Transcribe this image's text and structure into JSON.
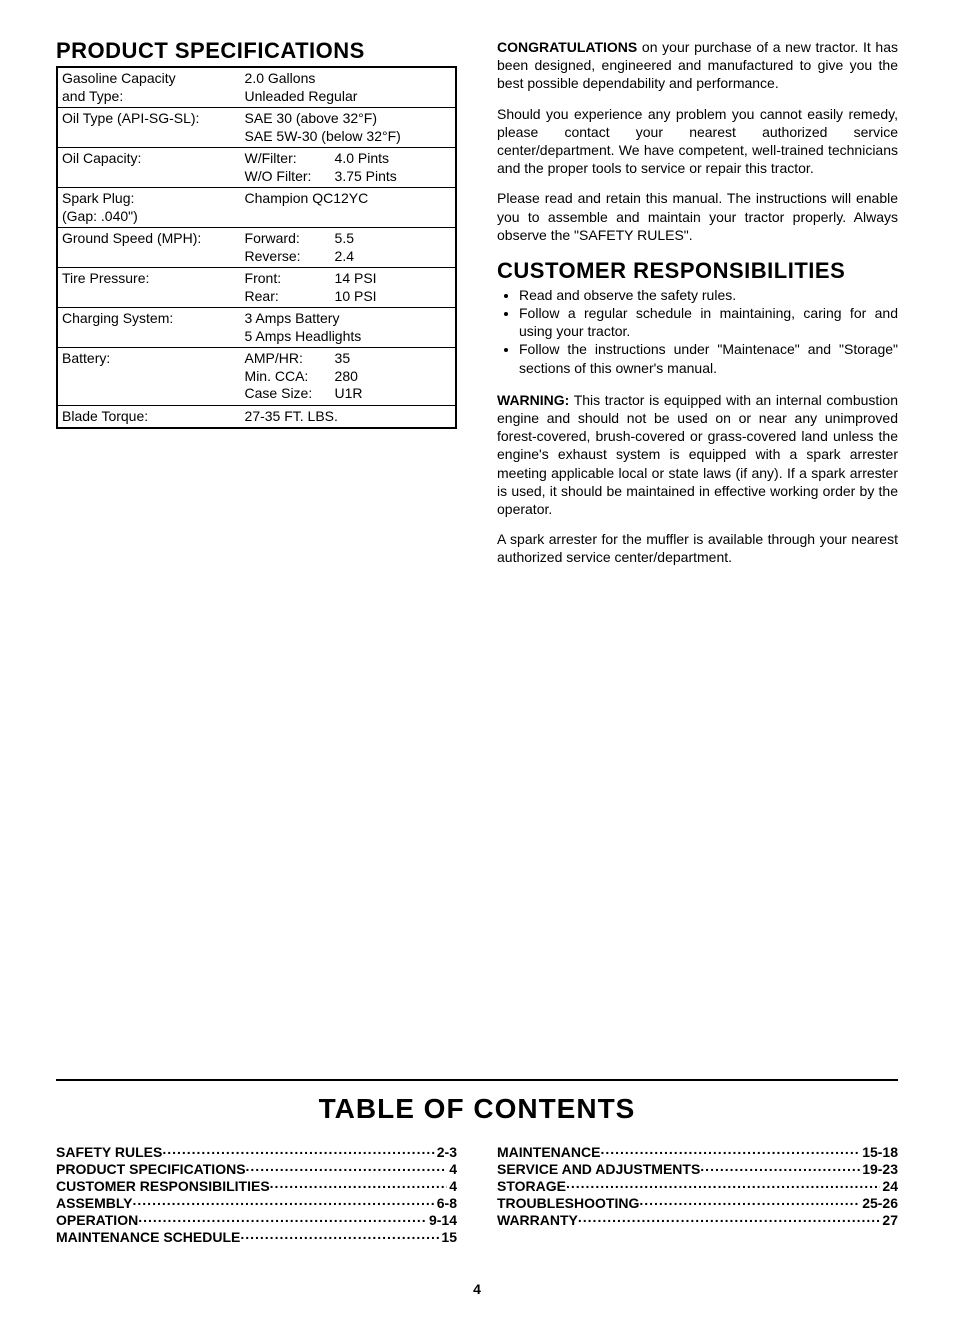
{
  "left": {
    "title": "PRODUCT SPECIFICATIONS",
    "rows": [
      {
        "label": "Gasoline Capacity\nand Type:",
        "lines": [
          "2.0 Gallons",
          "Unleaded Regular"
        ]
      },
      {
        "label": "Oil Type (API-SG-SL):",
        "lines": [
          "SAE 30 (above 32°F)",
          "SAE 5W-30 (below 32°F)"
        ]
      },
      {
        "label": "Oil Capacity:",
        "kv": [
          [
            "W/Filter:",
            "4.0 Pints"
          ],
          [
            "W/O Filter:",
            "3.75 Pints"
          ]
        ]
      },
      {
        "label": "Spark Plug:\n(Gap: .040\")",
        "lines": [
          "Champion QC12YC"
        ]
      },
      {
        "label": "Ground Speed (MPH):",
        "kv": [
          [
            "Forward:",
            "5.5"
          ],
          [
            "Reverse:",
            "2.4"
          ]
        ]
      },
      {
        "label": "Tire Pressure:",
        "kv": [
          [
            "Front:",
            "14 PSI"
          ],
          [
            "Rear:",
            "10 PSI"
          ]
        ]
      },
      {
        "label": "Charging System:",
        "lines": [
          "3 Amps Battery",
          "5 Amps Headlights"
        ]
      },
      {
        "label": "Battery:",
        "kv": [
          [
            "AMP/HR:",
            "35"
          ],
          [
            "Min. CCA:",
            "280"
          ],
          [
            "Case Size:",
            "U1R"
          ]
        ]
      },
      {
        "label": "Blade Torque:",
        "lines": [
          "27-35 FT. LBS."
        ]
      }
    ]
  },
  "right": {
    "p1_bold": "CONGRATULATIONS",
    "p1_rest": " on your purchase of a new tractor. It has been designed, engineered and manufactured to give you the best possible dependability and performance.",
    "p2": "Should you experience any problem you cannot easily remedy, please contact your nearest authorized service center/department. We have competent, well-trained technicians and the proper tools to service or repair this tractor.",
    "p3": "Please read and retain this manual. The instructions will enable you to assemble and maintain your tractor properly. Always observe the \"SAFETY RULES\".",
    "resp_title": "CUSTOMER RESPONSIBILITIES",
    "resp_items": [
      "Read and observe the safety rules.",
      "Follow a regular schedule in maintaining, caring for and using your tractor.",
      "Follow the instructions under \"Maintenace\" and \"Storage\" sections of this owner's manual."
    ],
    "warn_bold": "WARNING:",
    "warn_rest": " This tractor is equipped with an internal combustion engine and should not be used on or near any unimproved forest-covered, brush-covered or grass-covered land unless the engine's exhaust system is equipped with a spark arrester meeting applicable local or state laws (if any). If a spark arrester is used, it should be maintained in effective working order by the operator.",
    "p4": "A spark arrester for the muffler is available through your nearest authorized service center/department."
  },
  "toc": {
    "title": "TABLE OF CONTENTS",
    "left": [
      {
        "label": "SAFETY RULES",
        "page": "2-3"
      },
      {
        "label": "PRODUCT SPECIFICATIONS",
        "page": "4"
      },
      {
        "label": "CUSTOMER RESPONSIBILITIES",
        "page": "4"
      },
      {
        "label": "ASSEMBLY",
        "page": "6-8"
      },
      {
        "label": "OPERATION",
        "page": "9-14"
      },
      {
        "label": "MAINTENANCE SCHEDULE",
        "page": "15"
      }
    ],
    "right": [
      {
        "label": "MAINTENANCE",
        "page": "15-18"
      },
      {
        "label": "SERVICE AND ADJUSTMENTS",
        "page": "19-23"
      },
      {
        "label": "STORAGE",
        "page": "24"
      },
      {
        "label": "TROUBLESHOOTING",
        "page": "25-26"
      },
      {
        "label": "WARRANTY",
        "page": "27"
      }
    ]
  },
  "page_number": "4"
}
